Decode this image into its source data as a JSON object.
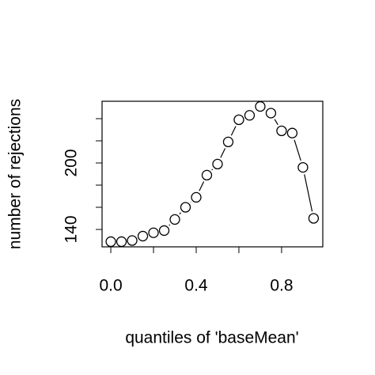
{
  "chart_data": {
    "type": "b",
    "xlabel": "quantiles of 'baseMean'",
    "ylabel": "number of rejections",
    "x": [
      0,
      0.05,
      0.1,
      0.15,
      0.2,
      0.25,
      0.3,
      0.35,
      0.4,
      0.45,
      0.5,
      0.55,
      0.6,
      0.65,
      0.7,
      0.75,
      0.8,
      0.85,
      0.9,
      0.95
    ],
    "values": [
      129,
      129,
      130,
      134,
      137,
      139,
      149,
      160,
      169,
      189,
      199,
      219,
      239,
      243,
      251,
      245,
      229,
      227,
      196,
      150
    ],
    "color": "#000000",
    "xlim": [
      -0.041,
      0.993
    ],
    "ylim": [
      124.3,
      255.7
    ],
    "xticks": [
      {
        "value": 0,
        "label": "0.0"
      },
      0.4,
      0.8
    ],
    "xminorticks": [
      0.2,
      0.6
    ],
    "yticks": [
      140,
      200
    ],
    "yminorticks": [
      160,
      180,
      220,
      240
    ]
  }
}
